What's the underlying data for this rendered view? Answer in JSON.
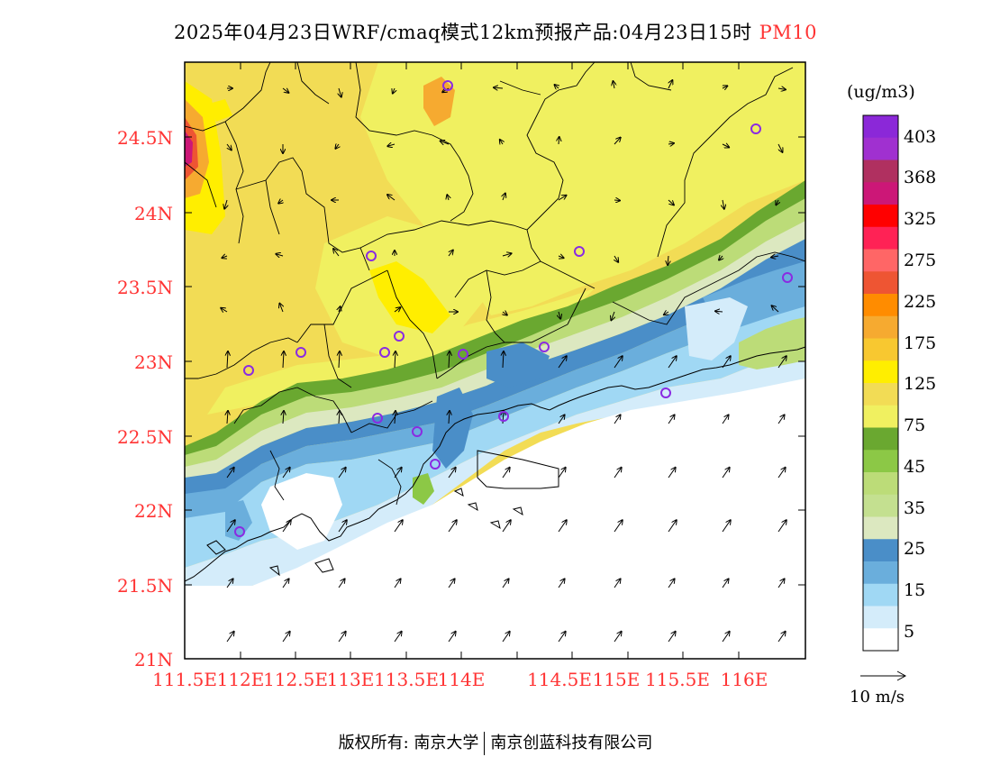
{
  "header": {
    "title": "2025年04月23日WRF/cmaq模式12km预报产品:04月23日15时",
    "pollutant": "PM10"
  },
  "map": {
    "lat_labels": [
      "24.5N",
      "24N",
      "23.5N",
      "23N",
      "22.5N",
      "22N",
      "21.5N",
      "21N"
    ],
    "lon_labels": [
      "111.5E",
      "112E",
      "112.5E",
      "113E",
      "113.5E",
      "114E",
      "114.5E",
      "115E",
      "115.5E",
      "116E"
    ],
    "regions": {
      "north_inland": {
        "level": "75-125",
        "color": "#f0f060"
      },
      "inland_patches": {
        "level": "125-175",
        "color": "#f2dc55"
      },
      "coastal_band": {
        "level": "25-45",
        "color": "#86c046"
      },
      "coastal_blue": {
        "level": "15-25",
        "color": "#4a8fc8"
      },
      "offshore": {
        "level": "0-5",
        "color": "#ffffff"
      }
    },
    "station_marker_color": "#8a2be2"
  },
  "colorbar": {
    "unit": "(ug/m3)",
    "labels": [
      "403",
      "368",
      "325",
      "275",
      "225",
      "175",
      "125",
      "75",
      "45",
      "35",
      "25",
      "15",
      "5"
    ],
    "colors": [
      "#8b28d8",
      "#a030d0",
      "#b03060",
      "#cc1777",
      "#ff0000",
      "#ff2255",
      "#ff6666",
      "#ee5533",
      "#ff8c00",
      "#f6aa30",
      "#f8c830",
      "#ffee00",
      "#f2dc55",
      "#f0f060",
      "#6aa830",
      "#8cc846",
      "#bcdc78",
      "#c4e090",
      "#dce8c0",
      "#4a8ec8",
      "#6aaedc",
      "#a0d8f4",
      "#d4ecfa",
      "#ffffff"
    ]
  },
  "wind_reference": {
    "label": "10 m/s"
  },
  "footer": {
    "left": "版权所有: 南京大学",
    "right": "南京创蓝科技有限公司"
  }
}
